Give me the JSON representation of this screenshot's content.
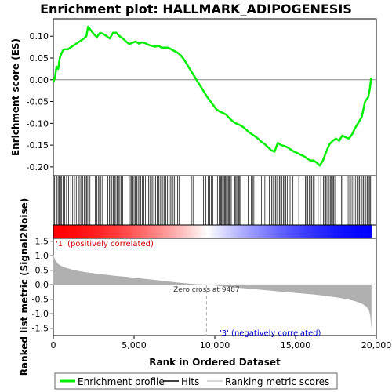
{
  "chart_data": {
    "type": "line",
    "title": "Enrichment plot: HALLMARK_ADIPOGENESIS",
    "x_range": [
      0,
      20000
    ],
    "x_ticks": [
      0,
      5000,
      10000,
      15000,
      20000
    ],
    "x_tick_labels": [
      "0",
      "5,000",
      "10,000",
      "15,000",
      "20,000"
    ],
    "xlabel": "Rank in Ordered Dataset",
    "n_genes": 19700,
    "top_panel": {
      "ylabel": "Enrichment score (ES)",
      "ylim": [
        -0.22,
        0.14
      ],
      "y_ticks": [
        0.1,
        0.05,
        0.0,
        -0.05,
        -0.1,
        -0.15,
        -0.2
      ],
      "y_tick_labels": [
        "0.10",
        "0.05",
        "0.00",
        "-0.05",
        "-0.10",
        "-0.15",
        "-0.20"
      ],
      "series": [
        {
          "name": "Enrichment profile",
          "color": "#00ee00",
          "x": [
            0,
            100,
            200,
            300,
            400,
            500,
            600,
            700,
            900,
            1100,
            1300,
            1500,
            1700,
            1900,
            2050,
            2150,
            2300,
            2500,
            2700,
            2900,
            3100,
            3300,
            3500,
            3700,
            3900,
            4100,
            4300,
            4500,
            4700,
            4900,
            5100,
            5300,
            5500,
            5700,
            5900,
            6100,
            6300,
            6500,
            6700,
            6900,
            7100,
            7300,
            7500,
            7700,
            7900,
            8100,
            8300,
            8500,
            8700,
            8900,
            9100,
            9300,
            9500,
            9700,
            9900,
            10100,
            10300,
            10500,
            10700,
            10900,
            11100,
            11300,
            11500,
            11700,
            11900,
            12100,
            12300,
            12500,
            12700,
            12900,
            13100,
            13300,
            13500,
            13700,
            13900,
            14100,
            14300,
            14500,
            14700,
            14900,
            15100,
            15300,
            15500,
            15700,
            15900,
            16100,
            16300,
            16500,
            16700,
            16900,
            17100,
            17300,
            17500,
            17700,
            17900,
            18100,
            18300,
            18500,
            18700,
            18900,
            19100,
            19300,
            19500,
            19600,
            19680
          ],
          "y": [
            -0.005,
            0.005,
            0.03,
            0.025,
            0.05,
            0.06,
            0.068,
            0.07,
            0.07,
            0.075,
            0.08,
            0.085,
            0.09,
            0.095,
            0.1,
            0.122,
            0.115,
            0.105,
            0.098,
            0.108,
            0.105,
            0.1,
            0.095,
            0.108,
            0.108,
            0.1,
            0.095,
            0.088,
            0.082,
            0.085,
            0.088,
            0.083,
            0.086,
            0.084,
            0.08,
            0.078,
            0.076,
            0.078,
            0.074,
            0.074,
            0.074,
            0.07,
            0.066,
            0.062,
            0.056,
            0.046,
            0.034,
            0.022,
            0.01,
            -0.002,
            -0.014,
            -0.026,
            -0.038,
            -0.048,
            -0.058,
            -0.068,
            -0.073,
            -0.076,
            -0.08,
            -0.088,
            -0.095,
            -0.1,
            -0.103,
            -0.107,
            -0.113,
            -0.12,
            -0.125,
            -0.13,
            -0.136,
            -0.143,
            -0.148,
            -0.155,
            -0.162,
            -0.165,
            -0.145,
            -0.15,
            -0.152,
            -0.155,
            -0.16,
            -0.165,
            -0.168,
            -0.172,
            -0.175,
            -0.18,
            -0.185,
            -0.185,
            -0.19,
            -0.197,
            -0.185,
            -0.165,
            -0.148,
            -0.14,
            -0.135,
            -0.14,
            -0.128,
            -0.132,
            -0.135,
            -0.125,
            -0.11,
            -0.098,
            -0.085,
            -0.05,
            -0.04,
            -0.02,
            0.005
          ]
        }
      ]
    },
    "hits_panel": {
      "legend_name": "Hits",
      "hit_ranks": [
        80,
        160,
        230,
        300,
        370,
        450,
        520,
        600,
        700,
        820,
        950,
        1080,
        1200,
        1310,
        1420,
        1560,
        1650,
        1740,
        1830,
        1910,
        1990,
        2060,
        2130,
        2200,
        2270,
        2600,
        2700,
        2780,
        2860,
        2950,
        3050,
        3380,
        3470,
        3550,
        3630,
        3720,
        3800,
        3880,
        3960,
        4040,
        4120,
        4200,
        4290,
        4680,
        4760,
        4840,
        4920,
        5000,
        5080,
        5170,
        5250,
        5340,
        5420,
        5510,
        5610,
        5700,
        5800,
        5890,
        5980,
        6070,
        6160,
        6250,
        6340,
        6430,
        6520,
        6610,
        6700,
        6790,
        6880,
        6970,
        7060,
        7150,
        7240,
        7330,
        7420,
        7510,
        7600,
        7690,
        7780,
        8550,
        8650,
        9300,
        9450,
        9580,
        9680,
        9780,
        9870,
        10070,
        10160,
        10260,
        10360,
        10420,
        10480,
        10540,
        10600,
        10660,
        10720,
        10780,
        10840,
        10900,
        10960,
        11020,
        11240,
        11300,
        11360,
        11420,
        11480,
        11540,
        11600,
        11860,
        12060,
        12260,
        12340,
        12420,
        12880,
        13100,
        13380,
        13520,
        13600,
        13680,
        13760,
        13840,
        13920,
        14000,
        14080,
        14160,
        14240,
        14320,
        14400,
        14480,
        14660,
        14840,
        15020,
        15200,
        15600,
        15680,
        15760,
        15840,
        15920,
        16000,
        16080,
        16160,
        16400,
        16560,
        16720,
        16800,
        16870,
        16940,
        17010,
        17080,
        17150,
        17220,
        17290,
        17360,
        17430,
        17500,
        17850,
        17920,
        18200,
        18300,
        18400,
        18500,
        18600,
        18700,
        18800,
        18880,
        18960,
        19040,
        19120,
        19200,
        19280,
        19360,
        19440,
        19520,
        19600,
        19650
      ]
    },
    "heatmap_bar": {
      "positive_color": "#ff0000",
      "negative_color": "#0000ff"
    },
    "bottom_panel": {
      "ylabel": "Ranked list metric (Signal2Noise)",
      "ylim": [
        -1.75,
        1.6
      ],
      "y_ticks": [
        1.5,
        1.0,
        0.5,
        0.0,
        -0.5,
        -1.0,
        -1.5
      ],
      "y_tick_labels": [
        "1.5",
        "1.0",
        "0.5",
        "0.0",
        "-0.5",
        "-1.0",
        "-1.5"
      ],
      "series": [
        {
          "name": "Ranking metric scores",
          "color": "#b0b0b0",
          "x": [
            0,
            50,
            150,
            300,
            500,
            800,
            1200,
            1700,
            2300,
            3000,
            3800,
            4600,
            5400,
            6200,
            7000,
            7800,
            8600,
            9487,
            10400,
            11200,
            12000,
            12800,
            13600,
            14400,
            15200,
            16000,
            16800,
            17600,
            18200,
            18700,
            19100,
            19400,
            19550,
            19620,
            19660,
            19700
          ],
          "y": [
            1.05,
            0.95,
            0.82,
            0.72,
            0.65,
            0.58,
            0.52,
            0.46,
            0.41,
            0.36,
            0.31,
            0.27,
            0.22,
            0.17,
            0.12,
            0.07,
            0.03,
            0.0,
            -0.05,
            -0.09,
            -0.13,
            -0.17,
            -0.21,
            -0.25,
            -0.29,
            -0.33,
            -0.38,
            -0.44,
            -0.5,
            -0.57,
            -0.65,
            -0.76,
            -0.9,
            -1.05,
            -1.3,
            -1.55
          ]
        }
      ],
      "zero_cross_rank": 9487,
      "zero_cross_label": "Zero cross at 9487",
      "positive_label": "'1' (positively correlated)",
      "negative_label": "'3' (negatively correlated)"
    },
    "legend": {
      "placement": "bottom",
      "entries": [
        "Enrichment profile",
        "Hits",
        "Ranking metric scores"
      ]
    }
  }
}
